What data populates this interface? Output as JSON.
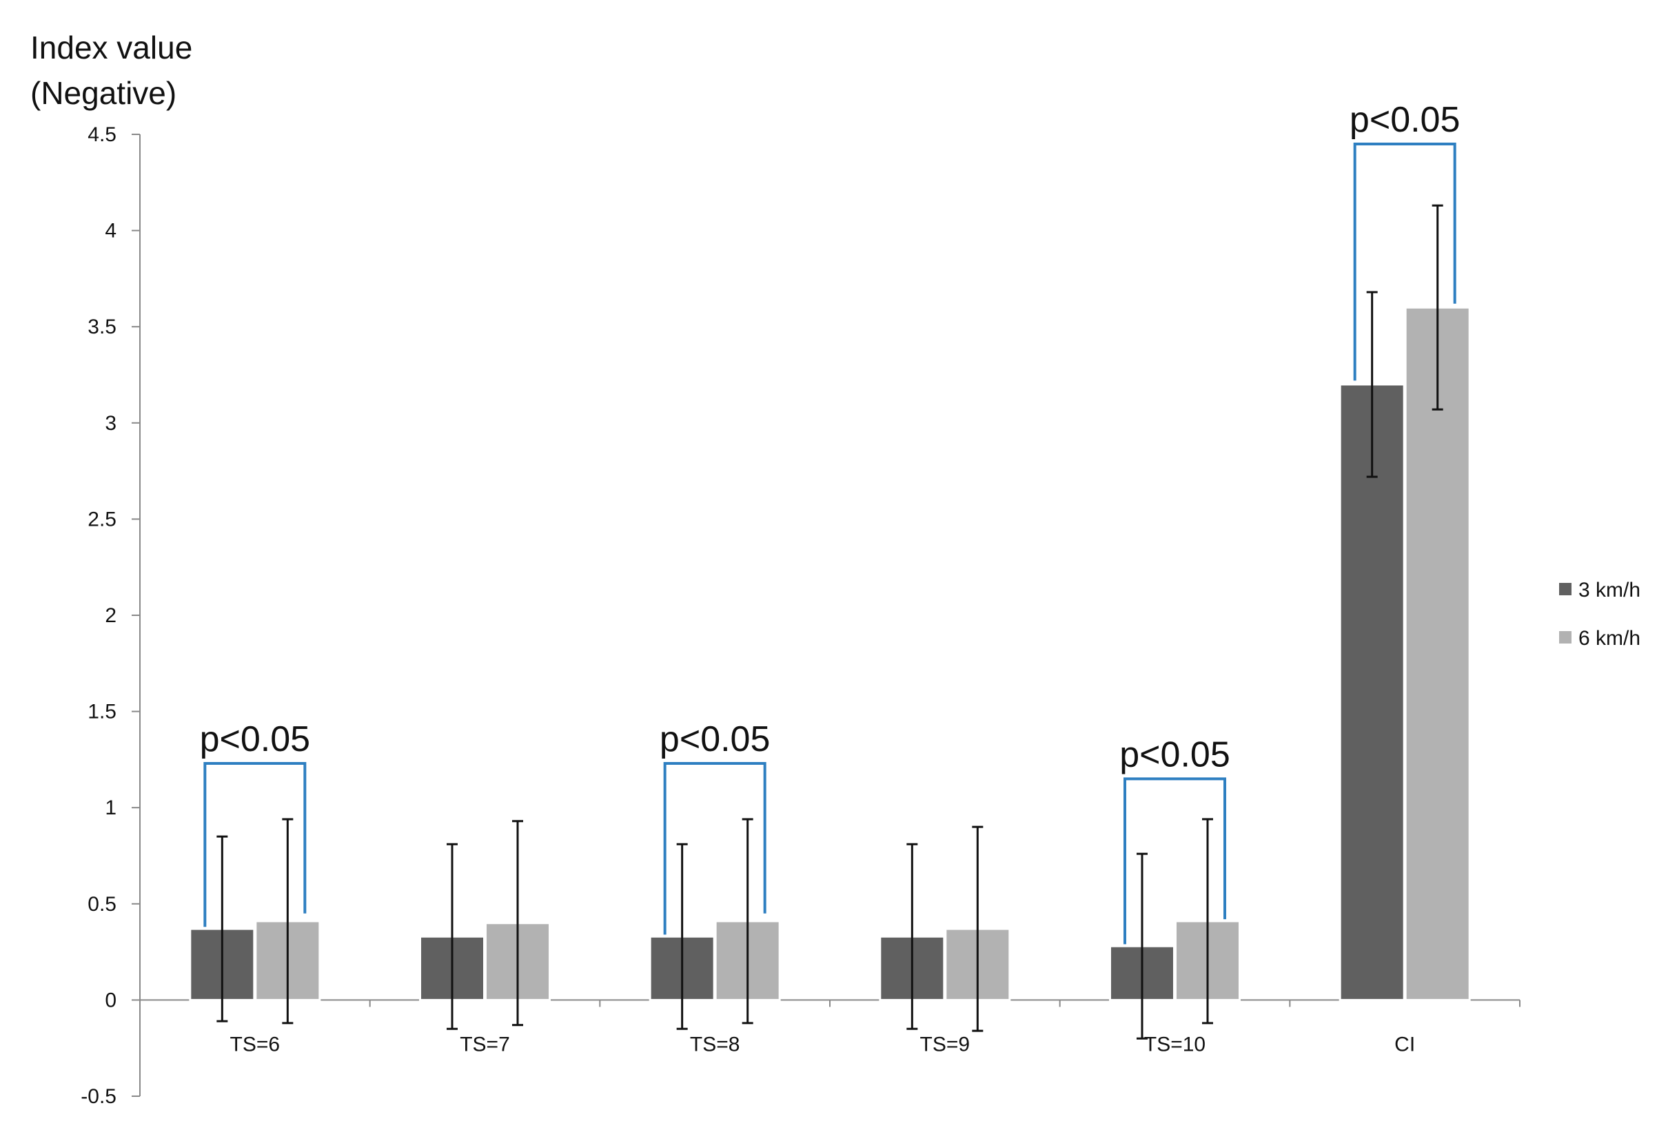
{
  "chart_data": {
    "type": "bar",
    "ylabel_lines": [
      "Index value",
      "(Negative)"
    ],
    "categories": [
      "TS=6",
      "TS=7",
      "TS=8",
      "TS=9",
      "TS=10",
      "CI"
    ],
    "series": [
      {
        "name": "3 km/h",
        "color": "#606060",
        "values": [
          0.37,
          0.33,
          0.33,
          0.33,
          0.28,
          3.2
        ],
        "error": [
          0.48,
          0.48,
          0.48,
          0.48,
          0.48,
          0.48
        ]
      },
      {
        "name": "6 km/h",
        "color": "#b2b2b2",
        "values": [
          0.41,
          0.4,
          0.41,
          0.37,
          0.41,
          3.6
        ],
        "error": [
          0.53,
          0.53,
          0.53,
          0.53,
          0.53,
          0.53
        ]
      }
    ],
    "ylim": [
      -0.5,
      4.5
    ],
    "yticks": [
      -0.5,
      0,
      0.5,
      1,
      1.5,
      2,
      2.5,
      3,
      3.5,
      4,
      4.5
    ],
    "ytick_labels": [
      "-0.5",
      "0",
      "0.5",
      "1",
      "1.5",
      "2",
      "2.5",
      "3",
      "3.5",
      "4",
      "4.5"
    ],
    "significance": [
      {
        "category": "TS=6",
        "label": "p<0.05",
        "level": 1.23,
        "left_low": 0.38,
        "right_low": 0.45
      },
      {
        "category": "TS=8",
        "label": "p<0.05",
        "level": 1.23,
        "left_low": 0.34,
        "right_low": 0.45
      },
      {
        "category": "TS=10",
        "label": "p<0.05",
        "level": 1.15,
        "left_low": 0.29,
        "right_low": 0.42
      },
      {
        "category": "CI",
        "label": "p<0.05",
        "level": 4.45,
        "left_low": 3.22,
        "right_low": 3.62
      }
    ],
    "bracket_color": "#2e7fc1",
    "grid": false,
    "legend_position": "right"
  }
}
